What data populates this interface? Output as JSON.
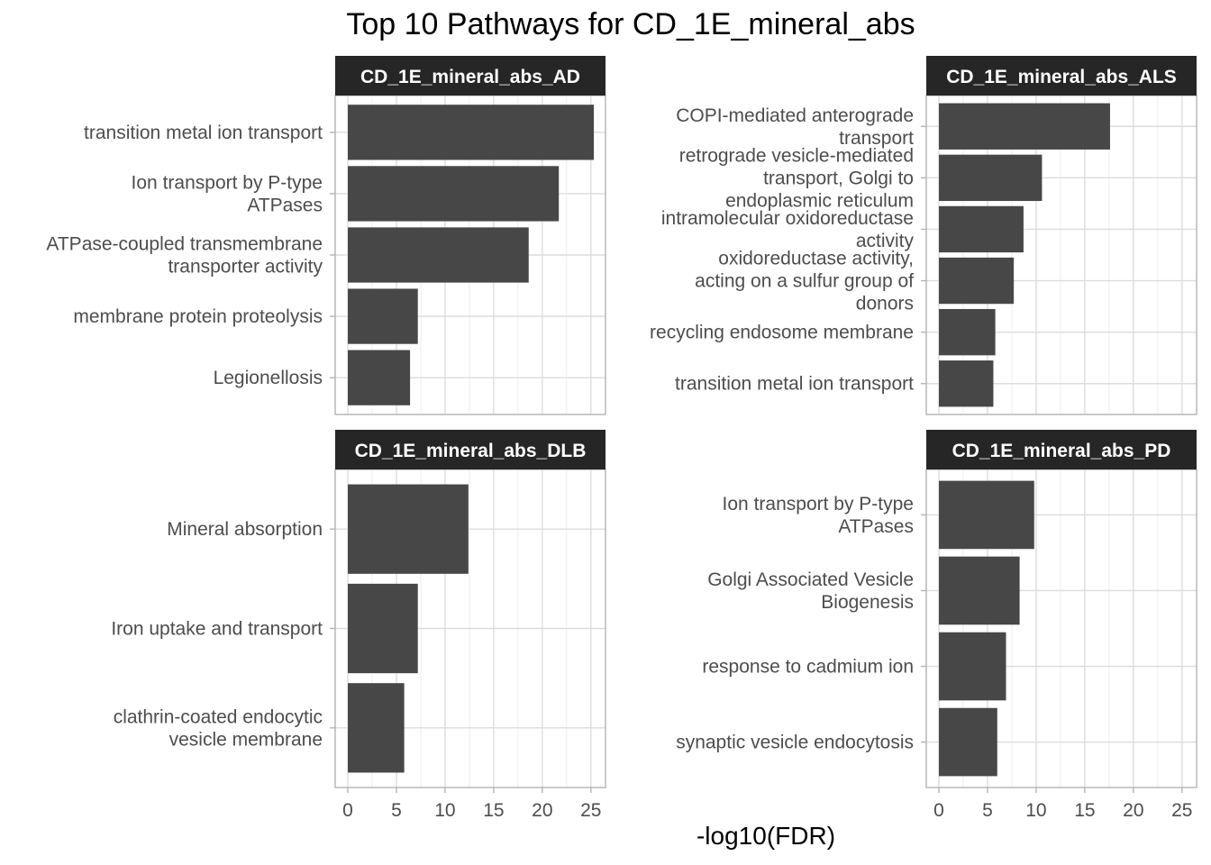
{
  "chart_data": {
    "type": "bar",
    "orientation": "horizontal",
    "title": "Top 10 Pathways for CD_1E_mineral_abs",
    "xlabel": "-log10(FDR)",
    "ylabel": "",
    "xlim": [
      -1.3,
      26.5
    ],
    "xticks": [
      0,
      5,
      10,
      15,
      20,
      25
    ],
    "grid": true,
    "bar_color": "#474747",
    "strip_color": "#262626",
    "panels": [
      {
        "name": "CD_1E_mineral_abs_AD",
        "categories": [
          "transition metal ion transport",
          "Ion transport by P-type ATPases",
          "ATPase-coupled transmembrane transporter activity",
          "membrane protein proteolysis",
          "Legionellosis"
        ],
        "label_lines": [
          [
            "transition metal ion transport"
          ],
          [
            "Ion transport by P-type",
            "ATPases"
          ],
          [
            "ATPase-coupled transmembrane",
            "transporter activity"
          ],
          [
            "membrane protein proteolysis"
          ],
          [
            "Legionellosis"
          ]
        ],
        "values": [
          25.3,
          21.7,
          18.6,
          7.2,
          6.4
        ]
      },
      {
        "name": "CD_1E_mineral_abs_ALS",
        "categories": [
          "COPI-mediated anterograde transport",
          "retrograde vesicle-mediated transport, Golgi to endoplasmic reticulum",
          "intramolecular oxidoreductase activity",
          "oxidoreductase activity, acting on a sulfur group of donors",
          "recycling endosome membrane",
          "transition metal ion transport"
        ],
        "label_lines": [
          [
            "COPI-mediated anterograde",
            "transport"
          ],
          [
            "retrograde vesicle-mediated",
            "transport, Golgi to",
            "endoplasmic reticulum"
          ],
          [
            "intramolecular oxidoreductase",
            "activity"
          ],
          [
            "oxidoreductase activity,",
            "acting on a sulfur group of",
            "donors"
          ],
          [
            "recycling endosome membrane"
          ],
          [
            "transition metal ion transport"
          ]
        ],
        "values": [
          17.6,
          10.6,
          8.7,
          7.7,
          5.8,
          5.6
        ]
      },
      {
        "name": "CD_1E_mineral_abs_DLB",
        "categories": [
          "Mineral absorption",
          "Iron uptake and transport",
          "clathrin-coated endocytic vesicle membrane"
        ],
        "label_lines": [
          [
            "Mineral absorption"
          ],
          [
            "Iron uptake and transport"
          ],
          [
            "clathrin-coated endocytic",
            "vesicle membrane"
          ]
        ],
        "values": [
          12.4,
          7.2,
          5.8
        ]
      },
      {
        "name": "CD_1E_mineral_abs_PD",
        "categories": [
          "Ion transport by P-type ATPases",
          "Golgi Associated Vesicle Biogenesis",
          "response to cadmium ion",
          "synaptic vesicle endocytosis"
        ],
        "label_lines": [
          [
            "Ion transport by P-type",
            "ATPases"
          ],
          [
            "Golgi Associated Vesicle",
            "Biogenesis"
          ],
          [
            "response to cadmium ion"
          ],
          [
            "synaptic vesicle endocytosis"
          ]
        ],
        "values": [
          9.8,
          8.3,
          6.9,
          6.0
        ]
      }
    ]
  }
}
